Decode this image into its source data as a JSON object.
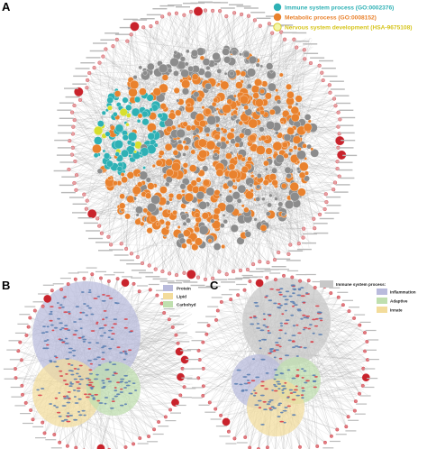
{
  "panels": {
    "a": {
      "letter": "A"
    },
    "b": {
      "letter": "B"
    },
    "c": {
      "letter": "C"
    }
  },
  "legend_a": [
    {
      "label": "Immune system process (GO:0002376)",
      "color": "#2eb1b5",
      "text_color": "#2eb1b5"
    },
    {
      "label": "Metabolic process (GO:0008152)",
      "color": "#e9822e",
      "text_color": "#e9822e"
    },
    {
      "label": "Nervous system development (HSA-9675108)",
      "color": "#f4f6a6",
      "text_color": "#d6c51c"
    }
  ],
  "legend_b": [
    {
      "label": "Protein",
      "color": "#b9bbdc"
    },
    {
      "label": "Lipid",
      "color": "#f3dc9b"
    },
    {
      "label": "Carbohyd",
      "color": "#bfdfae"
    }
  ],
  "legend_c": [
    {
      "label": "Immune system process:",
      "color": "#c8c8c8"
    },
    {
      "label": "Inflammation",
      "color": "#b9bbdc"
    },
    {
      "label": "Adaptive",
      "color": "#bfdfae"
    },
    {
      "label": "Innate",
      "color": "#f3dc9b"
    }
  ],
  "colors": {
    "mirna": "#c9232c",
    "mirna_light": "#e6a0a3",
    "gene_gray": "#8c8c8c",
    "edge": "#9a9a9a",
    "immune": "#2eb1b5",
    "metabolic": "#e9822e",
    "nervous": "#d7df2e",
    "protein": "#b9bbdc",
    "lipid": "#f3dc9b",
    "carbohydrate": "#bfdfae",
    "node_blue": "#5b7fb3"
  }
}
